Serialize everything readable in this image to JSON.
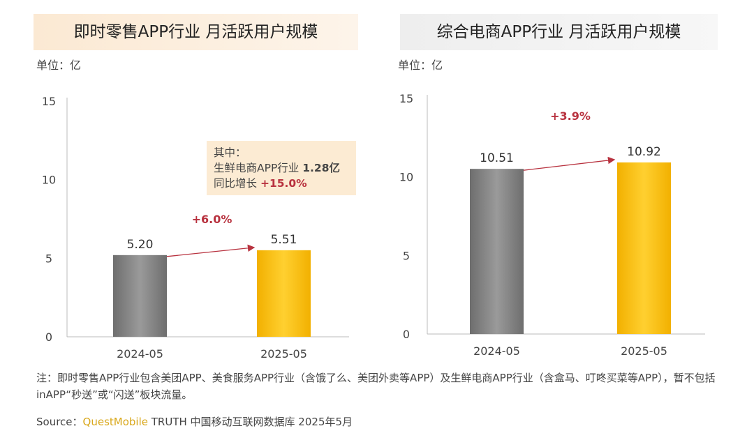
{
  "chart_data": [
    {
      "type": "bar",
      "title": "即时零售APP行业 月活跃用户规模",
      "unit_label": "单位：亿",
      "categories": [
        "2024-05",
        "2025-05"
      ],
      "values": [
        5.2,
        5.51
      ],
      "data_labels": [
        "5.20",
        "5.51"
      ],
      "ylim": [
        0,
        15
      ],
      "yticks": [
        "0",
        "5",
        "10",
        "15"
      ],
      "growth_label": "+6.0%",
      "bar_colors": [
        "#7f7f7f",
        "#f5b800"
      ],
      "callout": {
        "line1": "其中：",
        "line2_text": "生鲜电商APP行业",
        "line2_value": "1.28亿",
        "line3_text": "同比增长",
        "line3_value": "+15.0%"
      }
    },
    {
      "type": "bar",
      "title": "综合电商APP行业 月活跃用户规模",
      "unit_label": "单位：亿",
      "categories": [
        "2024-05",
        "2025-05"
      ],
      "values": [
        10.51,
        10.92
      ],
      "data_labels": [
        "10.51",
        "10.92"
      ],
      "ylim": [
        0,
        15
      ],
      "yticks": [
        "0",
        "5",
        "10",
        "15"
      ],
      "growth_label": "+3.9%",
      "bar_colors": [
        "#7f7f7f",
        "#f5b800"
      ]
    }
  ],
  "note": "注：即时零售APP行业包含美团APP、美食服务APP行业（含饿了么、美团外卖等APP）及生鲜电商APP行业（含盒马、叮咚买菜等APP），暂不包括inAPP“秒送”或“闪送”板块流量。",
  "source": {
    "label": "Source：",
    "brand": "QuestMobile",
    "text": "TRUTH 中国移动互联网数据库 2025年5月"
  },
  "colors": {
    "accent_red": "#b8323f",
    "gray_bar": "#7f7f7f",
    "yellow_bar": "#f5b800"
  }
}
